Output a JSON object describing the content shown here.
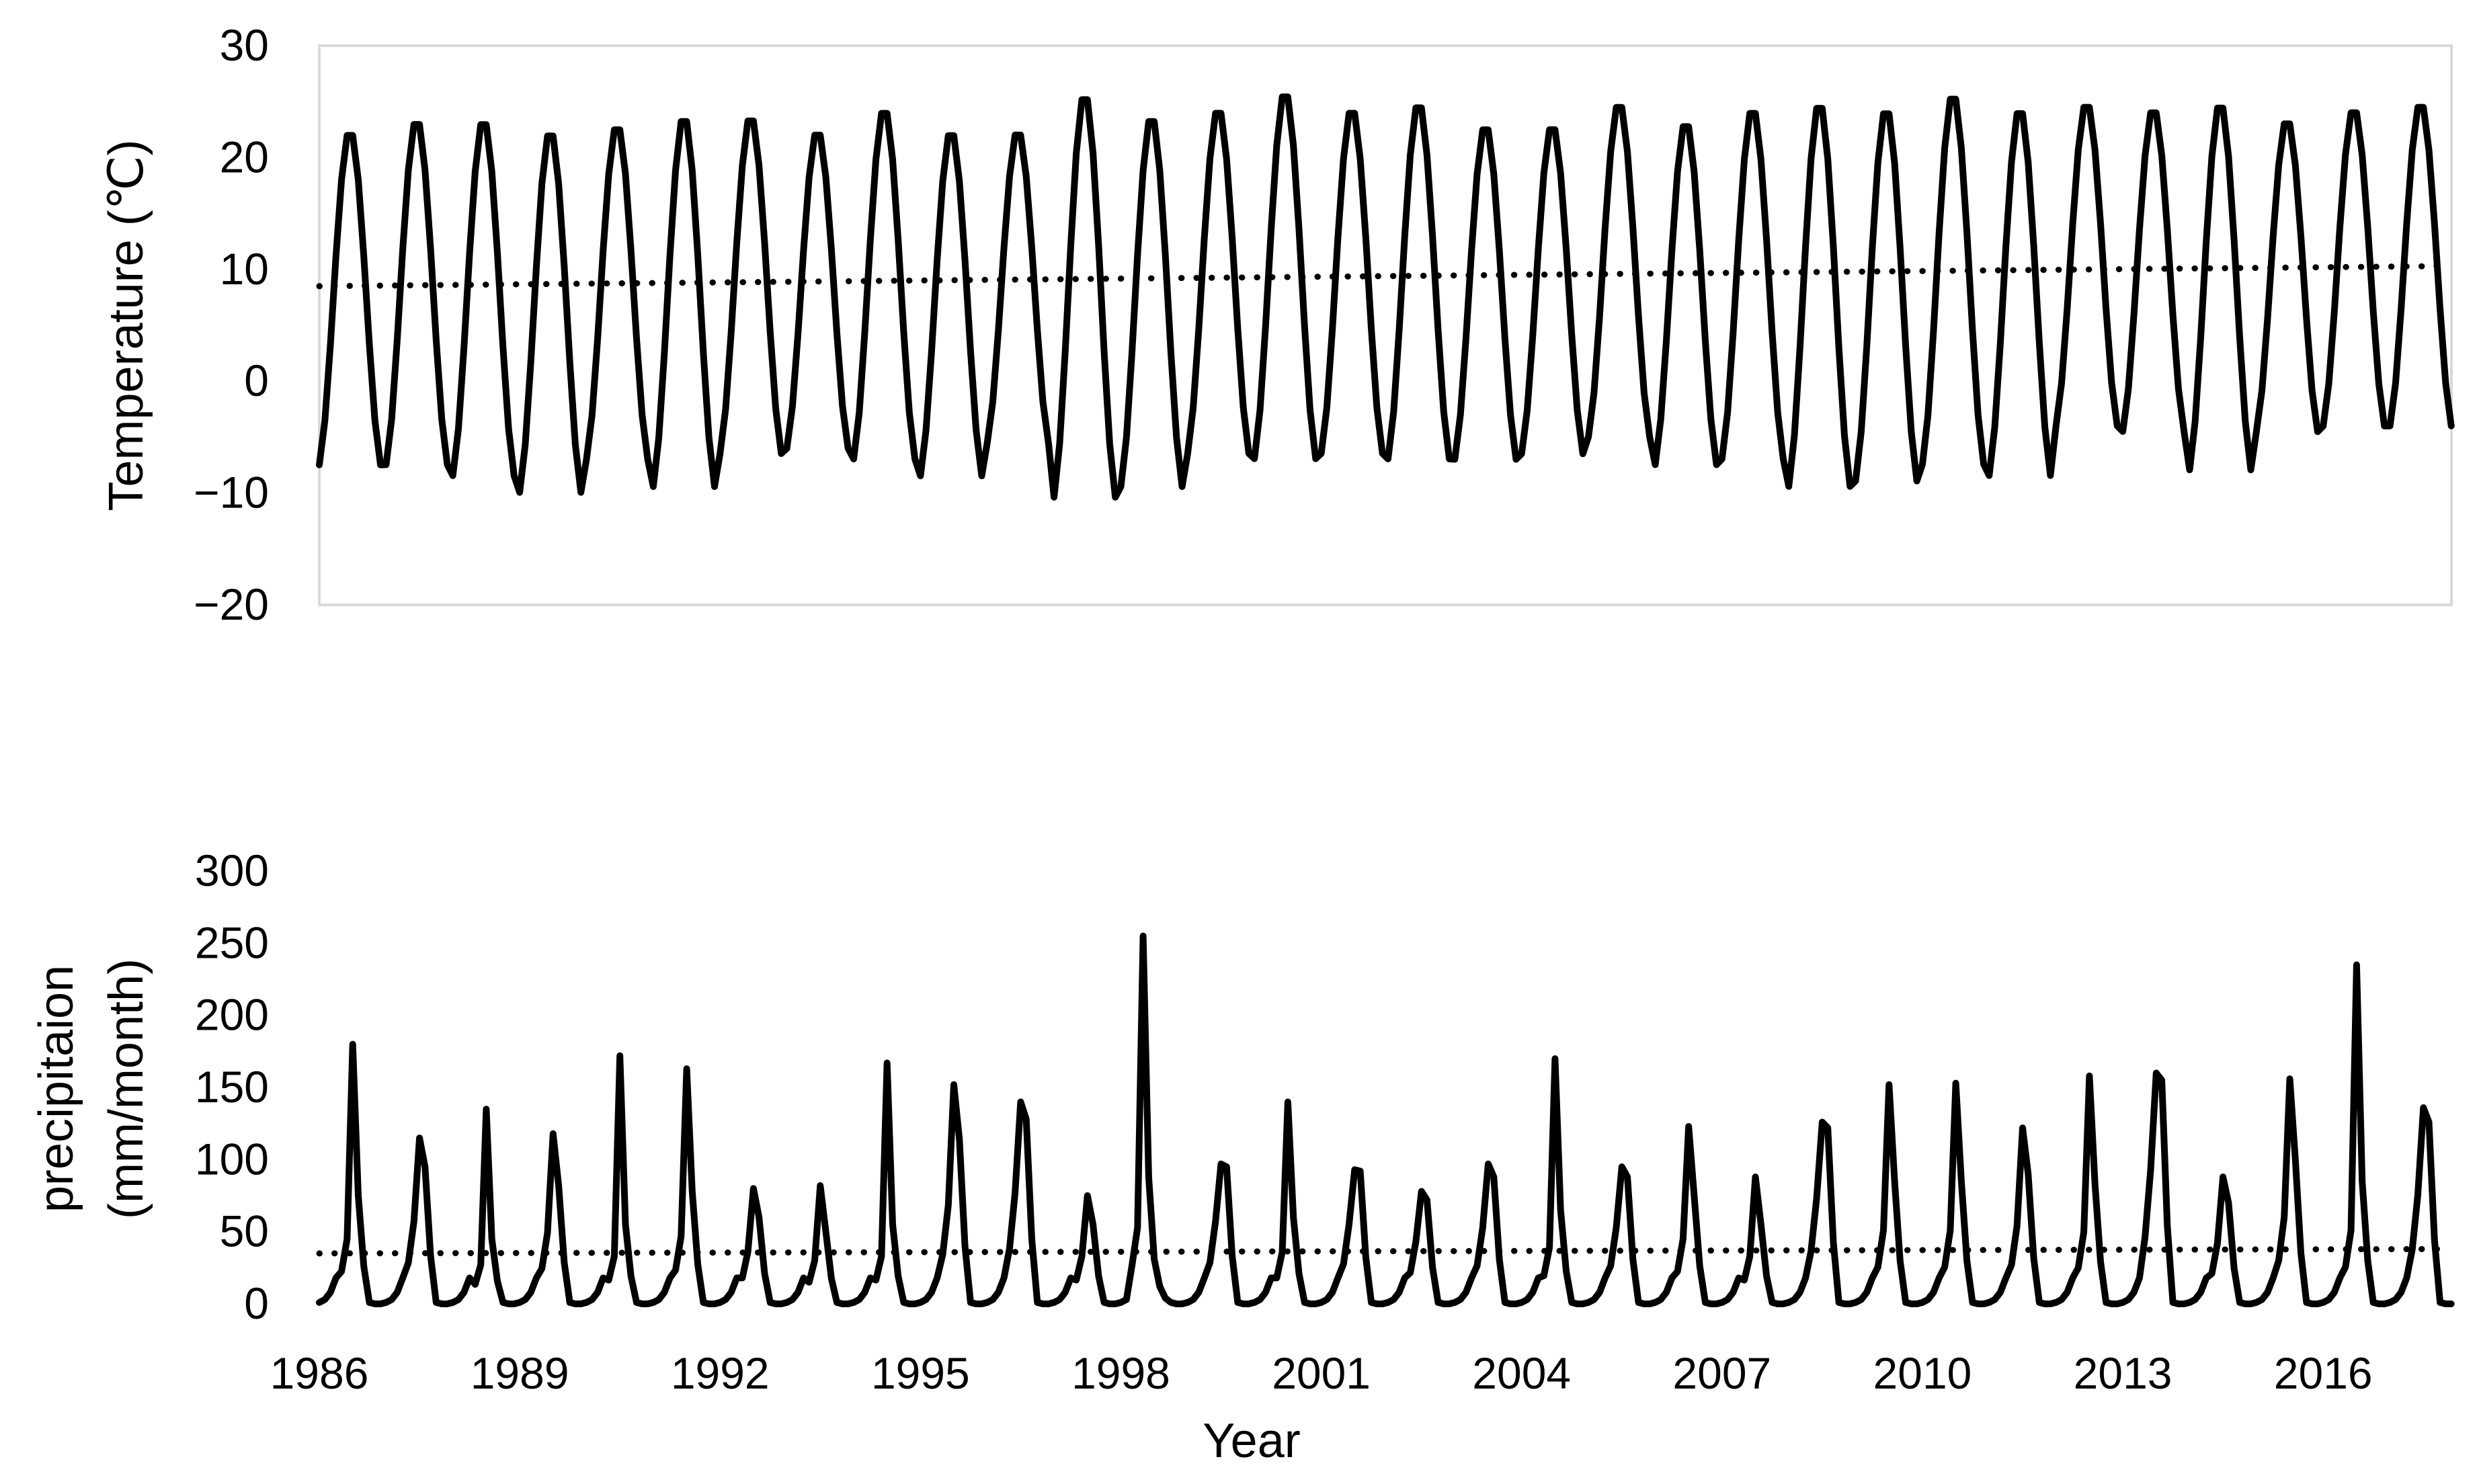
{
  "chart_data": [
    {
      "type": "line",
      "title": "",
      "ylabel": "Temperature (℃)",
      "xlabel": "",
      "ylim": [
        -20,
        30
      ],
      "yticks": [
        "30",
        "20",
        "10",
        "0",
        "−10",
        "−20"
      ],
      "ytick_values": [
        30,
        20,
        10,
        0,
        -10,
        -20
      ],
      "x_start": 1986,
      "x_end": 2017.92,
      "grid": false,
      "legend": "none",
      "annual_min": [
        -8,
        -8,
        -9,
        -10.5,
        -7.5,
        -10,
        -7,
        -6.5,
        -7.5,
        -9,
        -6,
        -11,
        -10,
        -7,
        -7.5,
        -7,
        -7.5,
        -7.5,
        -7,
        -5.5,
        -8,
        -7.5,
        -10,
        -9.5,
        -8,
        -9,
        -4.5,
        -5,
        -8.5,
        -5,
        -4.5,
        -4.5
      ],
      "annual_max": [
        22.5,
        23.5,
        23.5,
        22.5,
        23,
        23.8,
        23.8,
        22.5,
        24.5,
        22.5,
        22.5,
        25.8,
        23.8,
        24.5,
        26,
        24.5,
        25,
        23,
        23,
        25,
        23.3,
        24.5,
        25,
        24.5,
        25.8,
        24.5,
        25,
        24.5,
        25,
        23.5,
        24.5,
        25
      ],
      "series": [
        {
          "name": "",
          "style": "solid",
          "values": "monthly series generated from annual_min / annual_max"
        }
      ],
      "trend": {
        "style": "dotted",
        "start": 8.5,
        "end": 10.3
      }
    },
    {
      "type": "line",
      "title": "",
      "ylabel": "precipitaion",
      "ylabel_line2": "(mm/month)",
      "xlabel": "Year",
      "ylim": [
        0,
        300
      ],
      "yticks": [
        "300",
        "250",
        "200",
        "150",
        "100",
        "50",
        "0"
      ],
      "ytick_values": [
        300,
        250,
        200,
        150,
        100,
        50,
        0
      ],
      "x_start": 1986,
      "x_end": 2017.92,
      "xticks": [
        "1986",
        "1989",
        "1992",
        "1995",
        "1998",
        "2001",
        "2004",
        "2007",
        "2010",
        "2013",
        "2016"
      ],
      "xtick_values": [
        1986,
        1989,
        1992,
        1995,
        1998,
        2001,
        2004,
        2007,
        2010,
        2013,
        2016
      ],
      "grid": false,
      "legend": "none",
      "annual_peak_month": [
        6,
        6,
        6,
        6,
        6,
        6,
        6,
        6,
        6,
        6,
        6,
        6,
        4,
        6,
        6,
        6,
        6,
        6,
        6,
        6,
        6,
        6,
        6,
        6,
        6,
        6,
        6,
        6,
        6,
        6,
        6,
        6
      ],
      "annual_peak_value": [
        180,
        115,
        135,
        118,
        172,
        163,
        80,
        82,
        167,
        152,
        140,
        75,
        255,
        97,
        140,
        93,
        78,
        97,
        170,
        95,
        123,
        88,
        126,
        152,
        153,
        122,
        158,
        160,
        88,
        156,
        235,
        136
      ],
      "annual_secondary_value": [
        75,
        95,
        45,
        82,
        55,
        78,
        60,
        50,
        55,
        114,
        128,
        55,
        88,
        95,
        60,
        92,
        72,
        88,
        65,
        88,
        75,
        55,
        122,
        85,
        85,
        90,
        83,
        155,
        70,
        100,
        85,
        126
      ],
      "series": [
        {
          "name": "",
          "style": "solid",
          "values": "monthly series generated from annual peak / secondary values"
        }
      ],
      "trend": {
        "style": "dotted",
        "start": 35,
        "end": 38
      }
    }
  ]
}
